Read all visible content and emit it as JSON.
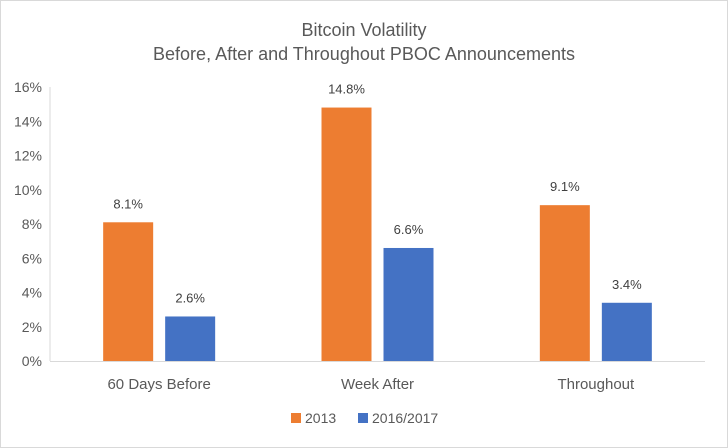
{
  "chart_data": {
    "type": "bar",
    "title": "Bitcoin Volatility",
    "subtitle": "Before, After and Throughout PBOC Announcements",
    "categories": [
      "60 Days Before",
      "Week After",
      "Throughout"
    ],
    "series": [
      {
        "name": "2013",
        "values": [
          8.1,
          14.8,
          9.1
        ],
        "labels": [
          "8.1%",
          "14.8%",
          "9.1%"
        ],
        "color": "#ed7d31"
      },
      {
        "name": "2016/2017",
        "values": [
          2.6,
          6.6,
          3.4
        ],
        "labels": [
          "2.6%",
          "6.6%",
          "3.4%"
        ],
        "color": "#4472c4"
      }
    ],
    "yticks": [
      "0%",
      "2%",
      "4%",
      "6%",
      "8%",
      "10%",
      "12%",
      "14%",
      "16%"
    ],
    "ylim": [
      0,
      16
    ],
    "xlabel": "",
    "ylabel": "",
    "grid": false,
    "legend_position": "bottom"
  }
}
